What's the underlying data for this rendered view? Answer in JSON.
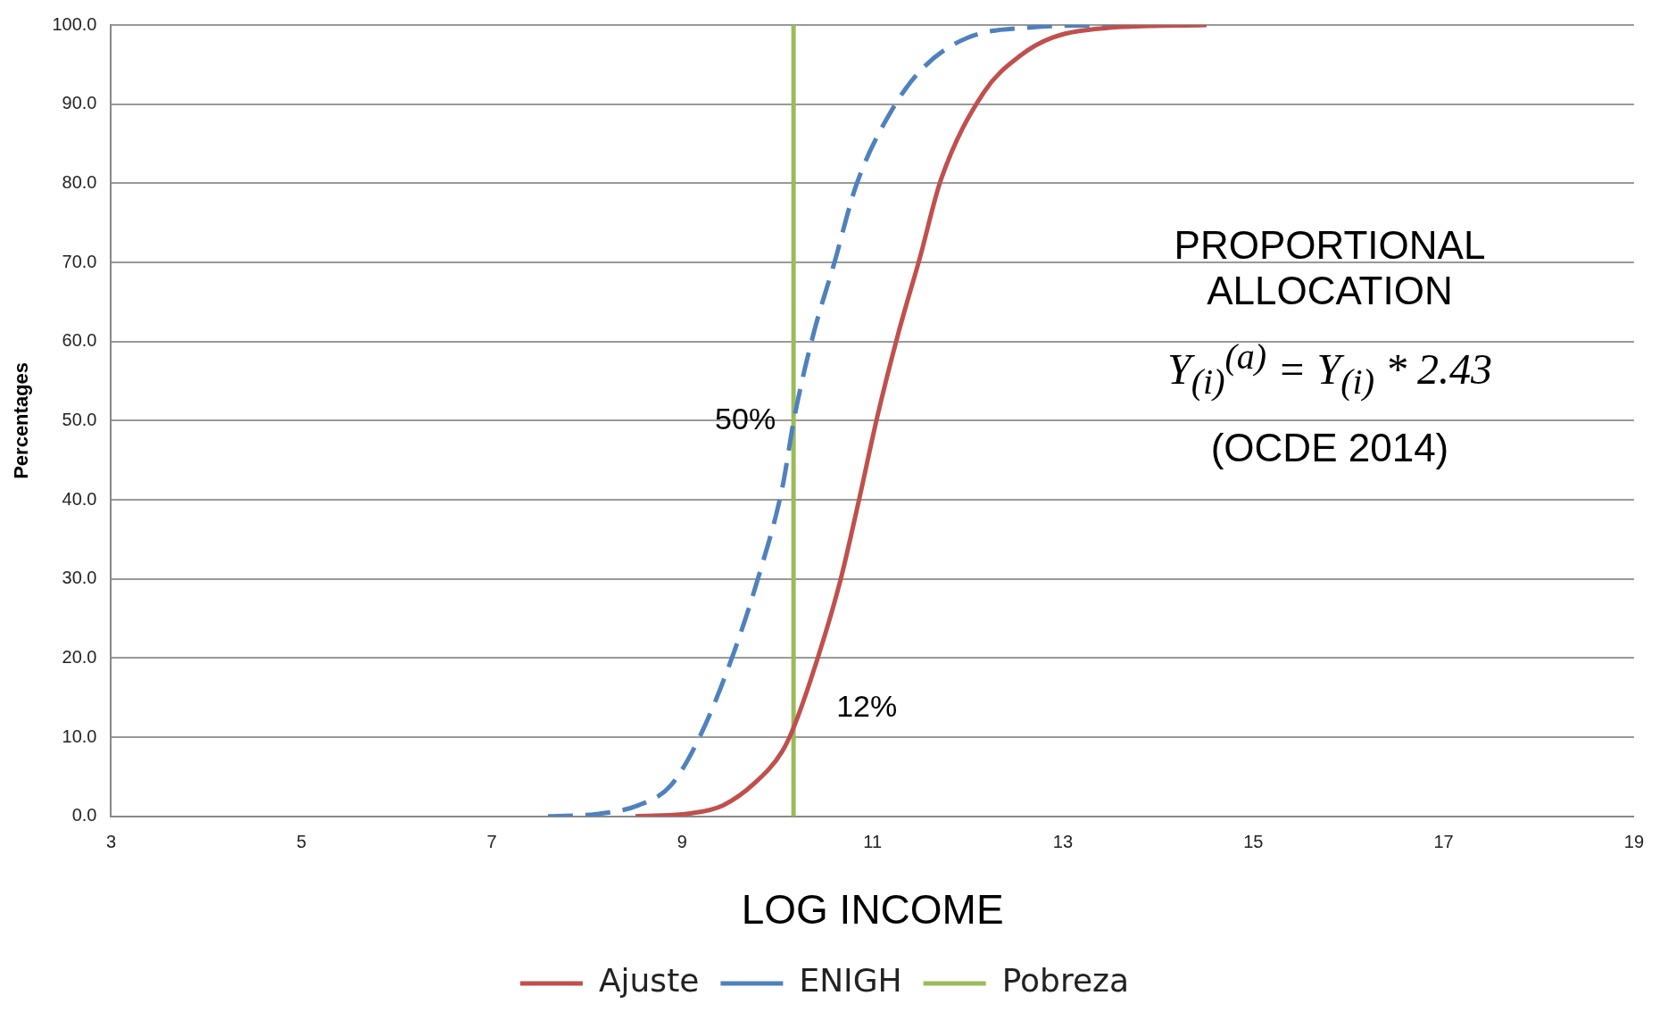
{
  "chart_data": {
    "type": "line",
    "xlabel": "LOG INCOME",
    "ylabel": "Percentages",
    "xlim": [
      3,
      19
    ],
    "xticks": [
      3,
      5,
      7,
      9,
      11,
      13,
      15,
      17,
      19
    ],
    "ylim": [
      0,
      100
    ],
    "yticks": [
      {
        "value": 0,
        "label": "0.0"
      },
      {
        "value": 10,
        "label": "10.0"
      },
      {
        "value": 20,
        "label": "20.0"
      },
      {
        "value": 30,
        "label": "30.0"
      },
      {
        "value": 40,
        "label": "40.0"
      },
      {
        "value": 50,
        "label": "50.0"
      },
      {
        "value": 60,
        "label": "60.0"
      },
      {
        "value": 70,
        "label": "70.0"
      },
      {
        "value": 80,
        "label": "80.0"
      },
      {
        "value": 90,
        "label": "90.0"
      },
      {
        "value": 100,
        "label": "100.0"
      }
    ],
    "grid": "y",
    "legend": "bottom",
    "marker": "none",
    "series": [
      {
        "name": "Ajuste",
        "color": "#c0504d",
        "line_style": "solid",
        "x": [
          8.51,
          9.1,
          9.43,
          9.77,
          10.05,
          10.18,
          10.44,
          10.66,
          10.86,
          11.05,
          11.27,
          11.5,
          11.72,
          12.17,
          12.55,
          12.89,
          13.45,
          14.51
        ],
        "values": [
          0,
          0.4,
          1.4,
          4.3,
          8.2,
          11.5,
          20.6,
          29.7,
          40.1,
          50.5,
          61,
          70.7,
          80.5,
          91.5,
          96.1,
          98.4,
          99.6,
          100
        ]
      },
      {
        "name": "ENIGH",
        "color": "#4f81bd",
        "line_style": "dashed",
        "x": [
          7.59,
          8.1,
          8.54,
          8.88,
          9.19,
          9.54,
          9.82,
          10.05,
          10.18,
          10.38,
          10.6,
          10.83,
          11.22,
          11.55,
          12.0,
          12.67,
          13.56
        ],
        "values": [
          0,
          0.3,
          1.4,
          3.9,
          10.2,
          20.6,
          31,
          41.4,
          50.5,
          61,
          70,
          79.8,
          89.6,
          94.8,
          98.4,
          99.7,
          100
        ]
      },
      {
        "name": "Pobreza",
        "color": "#9bbb59",
        "line_style": "solid",
        "x": [
          10.17,
          10.17
        ],
        "values": [
          0,
          100
        ]
      }
    ],
    "annotations": [
      {
        "text": "50%",
        "x": 10.17,
        "y": 50
      },
      {
        "text": "12%",
        "x": 10.17,
        "y": 12
      },
      "PROPORTIONAL\nALLOCATION",
      "Y$_{(i)}$$^{(a)}$ = Y$_{(i)}$ * 2.43",
      "(OCDE 2014)"
    ]
  }
}
